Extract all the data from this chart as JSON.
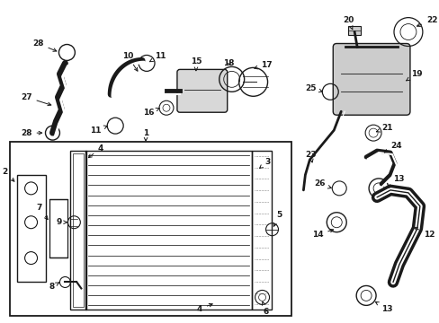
{
  "bg_color": "#ffffff",
  "line_color": "#1a1a1a",
  "fig_width": 4.89,
  "fig_height": 3.6,
  "dpi": 100,
  "fs": 6.5
}
